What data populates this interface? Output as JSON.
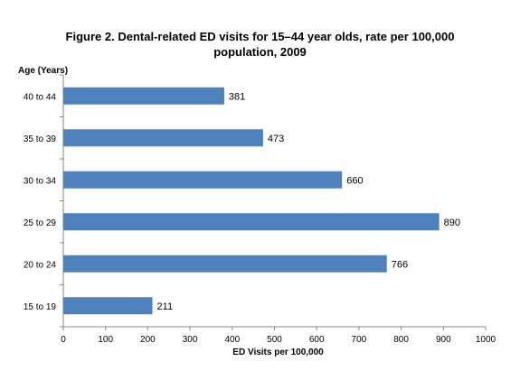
{
  "chart_data": {
    "type": "bar",
    "orientation": "horizontal",
    "title_line1": "Figure 2.  Dental-related ED visits for 15–44 year olds, rate per 100,000",
    "title_line2": "population, 2009",
    "ylabel": "Age (Years)",
    "xlabel": "ED Visits per 100,000",
    "categories": [
      "40 to 44",
      "35 to 39",
      "30 to 34",
      "25 to 29",
      "20 to 24",
      "15 to 19"
    ],
    "values": [
      381,
      473,
      660,
      890,
      766,
      211
    ],
    "value_labels": [
      "381",
      "473",
      "660",
      "890",
      "766",
      "211"
    ],
    "xlim": [
      0,
      1000
    ],
    "x_ticks": [
      0,
      100,
      200,
      300,
      400,
      500,
      600,
      700,
      800,
      900,
      1000
    ],
    "x_tick_labels": [
      "0",
      "100",
      "200",
      "300",
      "400",
      "500",
      "600",
      "700",
      "800",
      "900",
      "1000"
    ],
    "grid": false,
    "legend": "none",
    "bar_color": "#4F81BD"
  }
}
